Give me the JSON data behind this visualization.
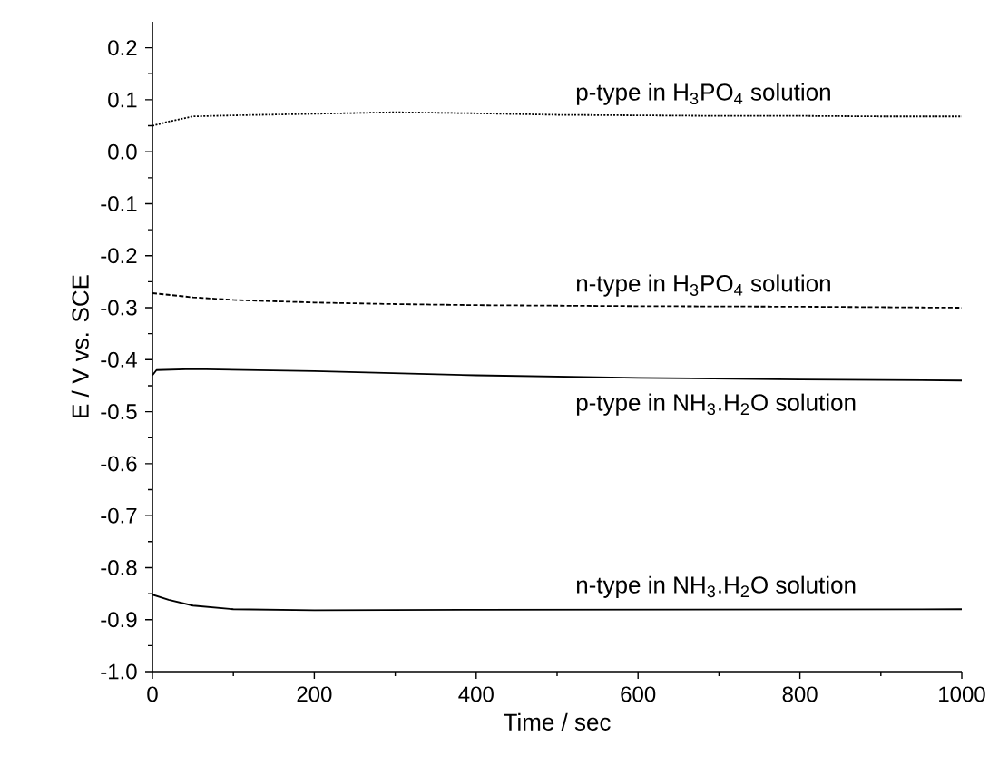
{
  "chart_data": {
    "type": "line",
    "xlabel": "Time / sec",
    "ylabel": "E / V vs. SCE",
    "xlim": [
      0,
      1000
    ],
    "xticks": [
      0,
      200,
      400,
      600,
      800,
      1000
    ],
    "ylim": [
      -1.0,
      0.25
    ],
    "yticks": [
      {
        "value": 0.2,
        "label": "0.2"
      },
      {
        "value": 0.1,
        "label": "0.1"
      },
      {
        "value": 0.0,
        "label": "0.0"
      },
      {
        "value": -0.1,
        "label": "-0.1"
      },
      {
        "value": -0.2,
        "label": "-0.2"
      },
      {
        "value": -0.3,
        "label": "-0.3"
      },
      {
        "value": -0.4,
        "label": "-0.4"
      },
      {
        "value": -0.5,
        "label": "-0.5"
      },
      {
        "value": -0.6,
        "label": "-0.6"
      },
      {
        "value": -0.7,
        "label": "-0.7"
      },
      {
        "value": -0.8,
        "label": "-0.8"
      },
      {
        "value": -0.9,
        "label": "-0.9"
      },
      {
        "value": -1.0,
        "label": "-1.0"
      }
    ],
    "grid": false,
    "legend": false,
    "marker": "none",
    "series": [
      {
        "name": "p-type in H$_{3}$PO$_{4}$ solution",
        "color": "#000000",
        "line_style": "dotted",
        "x": [
          0,
          20,
          50,
          100,
          200,
          300,
          400,
          500,
          600,
          700,
          800,
          900,
          1000
        ],
        "values": [
          0.05,
          0.058,
          0.068,
          0.07,
          0.073,
          0.076,
          0.074,
          0.071,
          0.07,
          0.069,
          0.069,
          0.068,
          0.068
        ]
      },
      {
        "name": "n-type in H$_{3}$PO$_{4}$ solution",
        "color": "#000000",
        "line_style": "dashed",
        "x": [
          0,
          50,
          100,
          200,
          300,
          400,
          600,
          800,
          1000
        ],
        "values": [
          -0.272,
          -0.28,
          -0.285,
          -0.29,
          -0.293,
          -0.295,
          -0.297,
          -0.298,
          -0.3
        ]
      },
      {
        "name": "p-type in NH$_{3}$.H$_{2}$O solution",
        "color": "#000000",
        "line_style": "solid",
        "x": [
          0,
          5,
          50,
          200,
          400,
          600,
          800,
          1000
        ],
        "values": [
          -0.43,
          -0.42,
          -0.418,
          -0.422,
          -0.43,
          -0.435,
          -0.438,
          -0.44
        ]
      },
      {
        "name": "n-type in NH$_{3}$.H$_{2}$O solution",
        "color": "#000000",
        "line_style": "solid",
        "x": [
          0,
          20,
          50,
          100,
          200,
          400,
          1000
        ],
        "values": [
          -0.852,
          -0.862,
          -0.873,
          -0.88,
          -0.882,
          -0.881,
          -0.88
        ]
      }
    ]
  }
}
